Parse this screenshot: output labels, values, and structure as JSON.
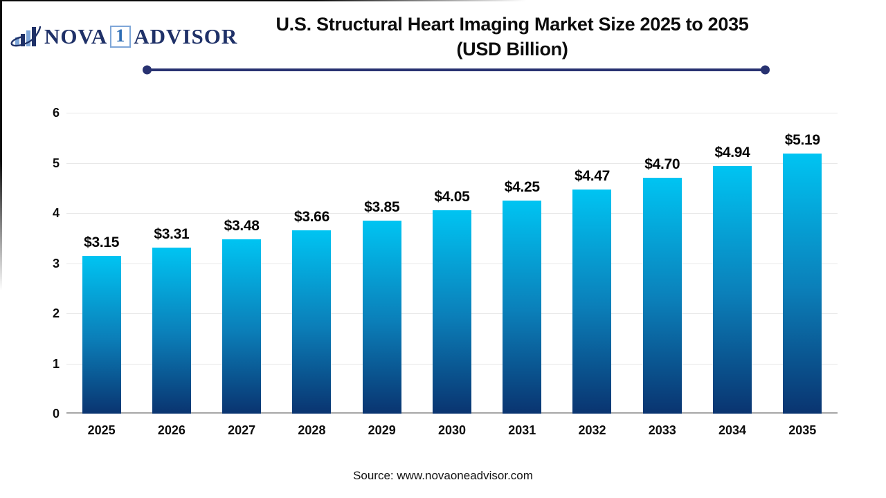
{
  "page": {
    "background": "#ffffff",
    "accent_navy": "#283271"
  },
  "logo": {
    "icon": "bar-chart-swoosh-icon",
    "part1": "NOVA",
    "part2": "1",
    "part3": "ADVISOR",
    "colors": {
      "navy": "#1f3168",
      "light_blue": "#7ea6d8",
      "one_blue": "#2e6db4"
    }
  },
  "header": {
    "title_line1": "U.S. Structural Heart Imaging Market Size 2025 to 2035",
    "title_line2": "(USD Billion)"
  },
  "chart_data": {
    "type": "bar",
    "title": "U.S. Structural Heart Imaging Market Size 2025 to 2035 (USD Billion)",
    "categories": [
      "2025",
      "2026",
      "2027",
      "2028",
      "2029",
      "2030",
      "2031",
      "2032",
      "2033",
      "2034",
      "2035"
    ],
    "values": [
      3.15,
      3.31,
      3.48,
      3.66,
      3.85,
      4.05,
      4.25,
      4.47,
      4.7,
      4.94,
      5.19
    ],
    "bar_labels": [
      "$3.15",
      "$3.31",
      "$3.48",
      "$3.66",
      "$3.85",
      "$4.05",
      "$4.25",
      "$4.47",
      "$4.70",
      "$4.94",
      "$5.19"
    ],
    "xlabel": "",
    "ylabel": "",
    "ylim": [
      0,
      6
    ],
    "yticks": [
      0,
      1,
      2,
      3,
      4,
      5,
      6
    ],
    "grid": true,
    "legend": false,
    "bar_gradient_top": "#00c4f2",
    "bar_gradient_bottom": "#0a3470",
    "gridline_color": "#e7e7e7",
    "baseline_color": "#a6a6a6"
  },
  "footer": {
    "source": "Source: www.novaoneadvisor.com"
  }
}
